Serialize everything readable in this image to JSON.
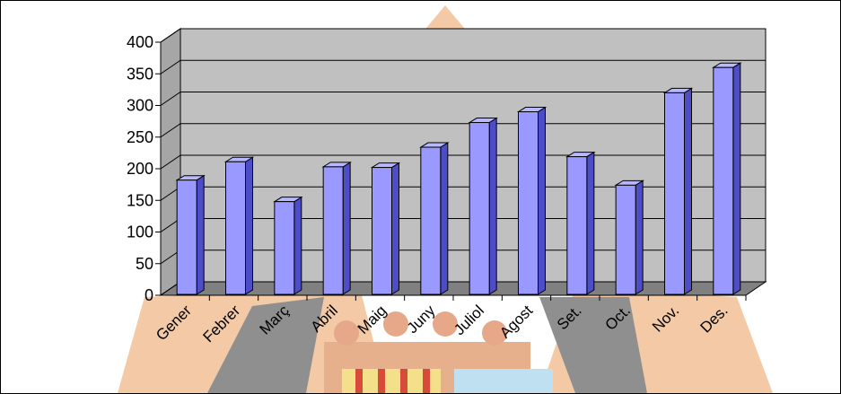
{
  "chart_data": {
    "type": "bar",
    "style": "3d-column",
    "categories": [
      "Gener",
      "Febrer",
      "Març",
      "Abril",
      "Maig",
      "Juny",
      "Juliol",
      "Agost",
      "Set.",
      "Oct.",
      "Nov.",
      "Des."
    ],
    "values": [
      182,
      211,
      148,
      203,
      202,
      234,
      273,
      290,
      219,
      174,
      320,
      360
    ],
    "yticks": [
      0,
      50,
      100,
      150,
      200,
      250,
      300,
      350,
      400
    ],
    "ylim": [
      0,
      400
    ],
    "grid": true,
    "legend": "none",
    "colors": {
      "bar_front": "#9999ff",
      "bar_side": "#4d4dc8",
      "bar_top": "#b8b8ff",
      "wall": "#c0c0c0",
      "floor": "#808080",
      "background_art": "#f3c9a6"
    }
  }
}
